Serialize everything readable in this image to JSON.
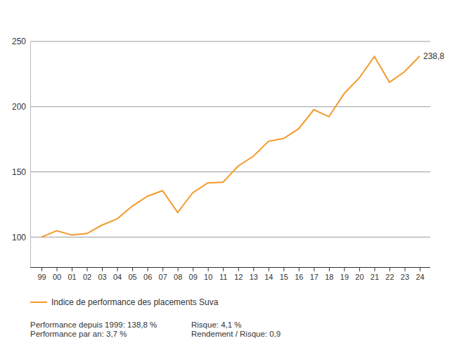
{
  "chart_data": {
    "type": "line",
    "categories": [
      "99",
      "00",
      "01",
      "02",
      "03",
      "04",
      "05",
      "06",
      "07",
      "08",
      "09",
      "10",
      "11",
      "12",
      "13",
      "14",
      "15",
      "16",
      "17",
      "18",
      "19",
      "20",
      "21",
      "22",
      "23",
      "24"
    ],
    "series": [
      {
        "name": "Indice de performance des placements Suva",
        "color": "#f39a2c",
        "values": [
          100,
          104.9,
          101.6,
          102.7,
          109.2,
          114,
          123.7,
          131.3,
          135.6,
          118.9,
          134,
          141.6,
          142.1,
          154.5,
          162,
          173.4,
          175.6,
          183.1,
          197.7,
          192.3,
          210,
          222,
          238.5,
          218.7,
          226.8,
          238.8
        ],
        "value_labels": [
          null,
          null,
          null,
          null,
          null,
          null,
          null,
          null,
          null,
          null,
          null,
          null,
          null,
          null,
          null,
          null,
          null,
          null,
          null,
          null,
          null,
          null,
          null,
          null,
          null,
          "238,8"
        ]
      }
    ],
    "ylim": [
      77,
      250
    ],
    "yticks": [
      100,
      150,
      200,
      250
    ],
    "grid": true,
    "data_labels": true,
    "legend": "bottom-left",
    "footnotes": [
      "Performance depuis 1999: 138,8 %",
      "Performance par an: 3,7 %",
      "Risque: 4,1 %",
      "Rendement / Risque: 0,9"
    ]
  }
}
